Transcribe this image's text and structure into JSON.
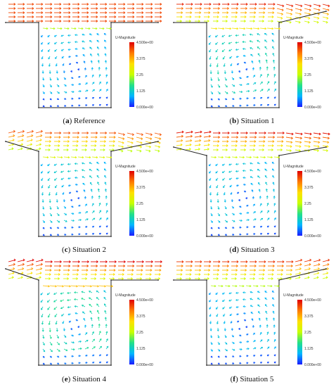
{
  "colorbar": {
    "title": "U-Magnitude",
    "ticks": [
      "4.500e+00",
      "3.375",
      "2.25",
      "1.125",
      "0.000e+00"
    ],
    "range": [
      0,
      4.5
    ],
    "colors": [
      "#1a1aff",
      "#00b7ff",
      "#22e08a",
      "#c8ff00",
      "#ffe000",
      "#ff7a00",
      "#e00000"
    ]
  },
  "panels": [
    {
      "letter": "a",
      "label": "Reference",
      "shape": "rect",
      "channel_speed": 4.3,
      "vortex": 1.2
    },
    {
      "letter": "b",
      "label": "Situation 1",
      "shape": "taper-right",
      "channel_speed": 4.3,
      "vortex": 1.6
    },
    {
      "letter": "c",
      "label": "Situation 2",
      "shape": "taper-both",
      "channel_speed": 4.0,
      "vortex": 1.4
    },
    {
      "letter": "d",
      "label": "Situation 3",
      "shape": "funnel",
      "channel_speed": 4.4,
      "vortex": 1.3
    },
    {
      "letter": "e",
      "label": "Situation 4",
      "shape": "taper-left",
      "channel_speed": 4.5,
      "vortex": 1.8
    },
    {
      "letter": "f",
      "label": "Situation 5",
      "shape": "taper-right-up",
      "channel_speed": 4.2,
      "vortex": 1.2
    }
  ]
}
